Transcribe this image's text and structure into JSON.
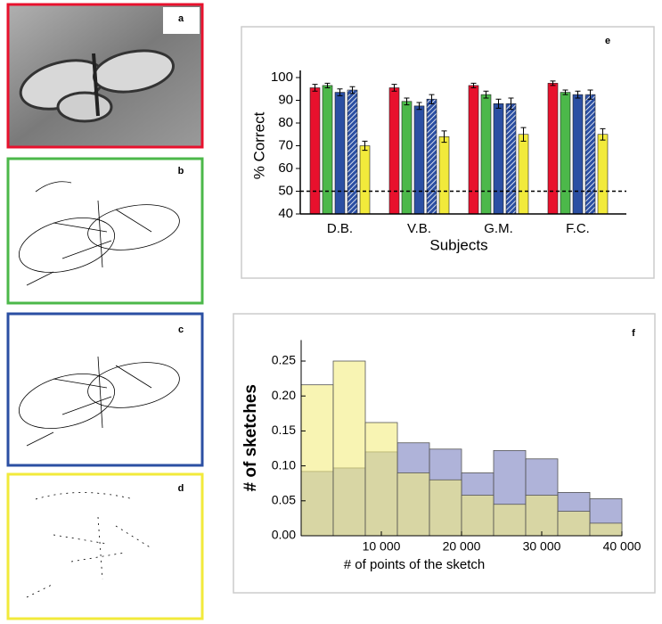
{
  "images": [
    {
      "label": "a"
    },
    {
      "label": "b"
    },
    {
      "label": "c"
    },
    {
      "label": "d"
    }
  ],
  "chart_data": [
    {
      "type": "bar",
      "panel_label": "e",
      "x_label": "Subjects",
      "y_label": "% Correct",
      "categories": [
        "D.B.",
        "V.B.",
        "G.M.",
        "F.C."
      ],
      "series": [
        {
          "color": "#e8112d",
          "hatch": false,
          "values": [
            95.5,
            95.5,
            96.5,
            97.5
          ],
          "errors": [
            1.5,
            1.5,
            1,
            1
          ]
        },
        {
          "color": "#4cb84a",
          "hatch": false,
          "values": [
            96.5,
            89.5,
            92.5,
            93.5
          ],
          "errors": [
            1,
            1.5,
            1.5,
            1
          ]
        },
        {
          "color": "#2b4fa3",
          "hatch": false,
          "values": [
            93.5,
            87.5,
            88.5,
            92.5
          ],
          "errors": [
            1.5,
            1.5,
            2,
            1.5
          ]
        },
        {
          "color": "#2b4fa3",
          "hatch": true,
          "values": [
            94.5,
            90.5,
            88.5,
            92.5
          ],
          "errors": [
            1.5,
            2,
            2.5,
            2
          ]
        },
        {
          "color": "#f2ea3b",
          "hatch": false,
          "values": [
            70,
            74,
            75,
            75
          ],
          "errors": [
            2,
            2.5,
            3,
            2.5
          ]
        }
      ],
      "reference_line": 50,
      "ylim": [
        40,
        100
      ],
      "yticks": [
        40,
        50,
        60,
        70,
        80,
        90,
        100
      ]
    },
    {
      "type": "histogram",
      "panel_label": "f",
      "x_label": "# of points of the sketch",
      "y_label": "# of sketches",
      "bins": [
        0,
        4000,
        8000,
        12000,
        16000,
        20000,
        24000,
        28000,
        32000,
        36000,
        40000
      ],
      "series": [
        {
          "color": "#7a80c0",
          "values": [
            0.092,
            0.097,
            0.12,
            0.133,
            0.124,
            0.09,
            0.122,
            0.11,
            0.062,
            0.053
          ]
        },
        {
          "color": "#f3ec80",
          "values": [
            0.216,
            0.25,
            0.162,
            0.09,
            0.08,
            0.058,
            0.045,
            0.058,
            0.035,
            0.018
          ]
        }
      ],
      "xlim": [
        0,
        40000
      ],
      "xticks": [
        {
          "value": 10000,
          "label": "10 000"
        },
        {
          "value": 20000,
          "label": "20 000"
        },
        {
          "value": 30000,
          "label": "30 000"
        },
        {
          "value": 40000,
          "label": "40 000"
        }
      ],
      "ylim": [
        0,
        0.28
      ],
      "yticks": [
        {
          "value": 0,
          "label": "0.00"
        },
        {
          "value": 0.05,
          "label": "0.05"
        },
        {
          "value": 0.1,
          "label": "0.10"
        },
        {
          "value": 0.15,
          "label": "0.15"
        },
        {
          "value": 0.2,
          "label": "0.20"
        },
        {
          "value": 0.25,
          "label": "0.25"
        }
      ]
    }
  ]
}
